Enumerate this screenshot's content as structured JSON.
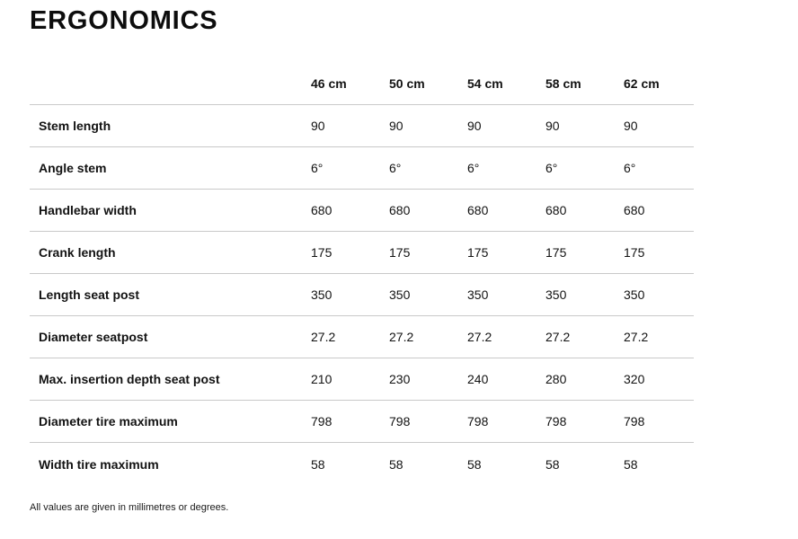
{
  "page": {
    "title": "ERGONOMICS",
    "footnote": "All values are given in millimetres or degrees."
  },
  "table": {
    "columns": [
      "46 cm",
      "50 cm",
      "54 cm",
      "58 cm",
      "62 cm"
    ],
    "rows": [
      {
        "label": "Stem length",
        "values": [
          "90",
          "90",
          "90",
          "90",
          "90"
        ]
      },
      {
        "label": "Angle stem",
        "values": [
          "6°",
          "6°",
          "6°",
          "6°",
          "6°"
        ]
      },
      {
        "label": "Handlebar width",
        "values": [
          "680",
          "680",
          "680",
          "680",
          "680"
        ]
      },
      {
        "label": "Crank length",
        "values": [
          "175",
          "175",
          "175",
          "175",
          "175"
        ]
      },
      {
        "label": "Length seat post",
        "values": [
          "350",
          "350",
          "350",
          "350",
          "350"
        ]
      },
      {
        "label": "Diameter seatpost",
        "values": [
          "27.2",
          "27.2",
          "27.2",
          "27.2",
          "27.2"
        ]
      },
      {
        "label": "Max. insertion depth seat post",
        "values": [
          "210",
          "230",
          "240",
          "280",
          "320"
        ]
      },
      {
        "label": "Diameter tire maximum",
        "values": [
          "798",
          "798",
          "798",
          "798",
          "798"
        ]
      },
      {
        "label": "Width tire maximum",
        "values": [
          "58",
          "58",
          "58",
          "58",
          "58"
        ]
      }
    ]
  },
  "colors": {
    "background": "#ffffff",
    "text": "#121212",
    "border": "#c9c9c9"
  }
}
